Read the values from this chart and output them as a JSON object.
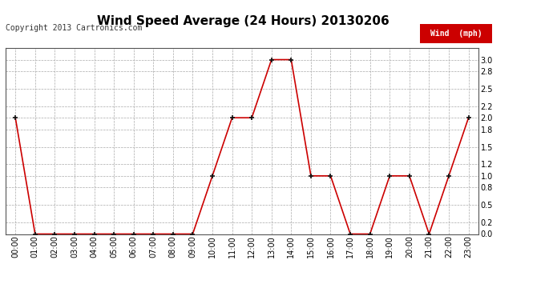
{
  "title": "Wind Speed Average (24 Hours) 20130206",
  "copyright_text": "Copyright 2013 Cartronics.com",
  "legend_label": "Wind  (mph)",
  "x_labels": [
    "00:00",
    "01:00",
    "02:00",
    "03:00",
    "04:00",
    "05:00",
    "06:00",
    "07:00",
    "08:00",
    "09:00",
    "10:00",
    "11:00",
    "12:00",
    "13:00",
    "14:00",
    "15:00",
    "16:00",
    "17:00",
    "18:00",
    "19:00",
    "20:00",
    "21:00",
    "22:00",
    "23:00"
  ],
  "y_values": [
    2.0,
    0.0,
    0.0,
    0.0,
    0.0,
    0.0,
    0.0,
    0.0,
    0.0,
    0.0,
    1.0,
    2.0,
    2.0,
    3.0,
    3.0,
    1.0,
    1.0,
    0.0,
    0.0,
    1.0,
    1.0,
    0.0,
    1.0,
    2.0
  ],
  "ylim": [
    0.0,
    3.2
  ],
  "yticks": [
    0.0,
    0.2,
    0.5,
    0.8,
    1.0,
    1.2,
    1.5,
    1.8,
    2.0,
    2.2,
    2.5,
    2.8,
    3.0
  ],
  "line_color": "#cc0000",
  "marker_color": "#111111",
  "bg_color": "#ffffff",
  "grid_color": "#aaaaaa",
  "legend_bg": "#cc0000",
  "legend_text_color": "#ffffff",
  "title_fontsize": 11,
  "copyright_fontsize": 7,
  "axis_fontsize": 7
}
